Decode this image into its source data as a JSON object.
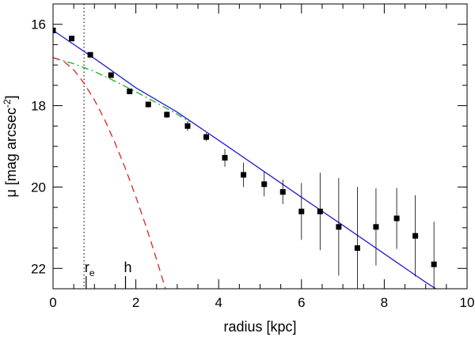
{
  "chart_data": {
    "type": "scatter",
    "xlabel": "radius [kpc]",
    "ylabel": "μ [mag arcsec",
    "ylabel_sup": "-2",
    "ylabel_close": "]",
    "xlim": [
      0,
      10
    ],
    "ylim": [
      22.5,
      15.5
    ],
    "y_inverted": true,
    "x_ticks": [
      0,
      2,
      4,
      6,
      8,
      10
    ],
    "y_ticks": [
      16,
      18,
      20,
      22
    ],
    "markers": [
      {
        "label": "r",
        "label_sub": "e",
        "x": 0.8
      },
      {
        "label": "h",
        "x": 1.75
      }
    ],
    "vline": {
      "x": 0.75,
      "style": "dotted",
      "color": "#555555"
    },
    "points": [
      {
        "x": 0.0,
        "y": 16.15,
        "err": 0.0
      },
      {
        "x": 0.45,
        "y": 16.35,
        "err": 0.0
      },
      {
        "x": 0.9,
        "y": 16.75,
        "err": 0.0
      },
      {
        "x": 1.4,
        "y": 17.25,
        "err": 0.0
      },
      {
        "x": 1.85,
        "y": 17.65,
        "err": 0.0
      },
      {
        "x": 2.3,
        "y": 17.97,
        "err": 0.0
      },
      {
        "x": 2.75,
        "y": 18.22,
        "err": 0.08
      },
      {
        "x": 3.25,
        "y": 18.5,
        "err": 0.12
      },
      {
        "x": 3.7,
        "y": 18.77,
        "err": 0.1
      },
      {
        "x": 4.15,
        "y": 19.28,
        "err": 0.22
      },
      {
        "x": 4.6,
        "y": 19.7,
        "err": 0.3
      },
      {
        "x": 5.1,
        "y": 19.93,
        "err": 0.3
      },
      {
        "x": 5.55,
        "y": 20.12,
        "err": 0.3
      },
      {
        "x": 6.0,
        "y": 20.6,
        "err": 0.7
      },
      {
        "x": 6.45,
        "y": 20.6,
        "err": 0.95
      },
      {
        "x": 6.9,
        "y": 20.98,
        "err": 1.2
      },
      {
        "x": 7.35,
        "y": 21.5,
        "err": 1.5
      },
      {
        "x": 7.8,
        "y": 20.98,
        "err": 0.95
      },
      {
        "x": 8.3,
        "y": 20.77,
        "err": 0.75
      },
      {
        "x": 8.75,
        "y": 21.2,
        "err": 1.0
      },
      {
        "x": 9.2,
        "y": 21.9,
        "err": 1.05
      }
    ],
    "series": [
      {
        "type": "line",
        "color": "#1f1fd0",
        "style": "solid",
        "x": [
          0,
          1,
          2,
          3,
          4,
          5,
          6,
          7,
          8,
          9,
          9.4
        ],
        "y": [
          16.15,
          16.84,
          17.56,
          18.16,
          18.85,
          19.55,
          20.25,
          20.94,
          21.64,
          22.34,
          22.6
        ]
      },
      {
        "type": "line",
        "color": "#18b020",
        "style": "dashdot",
        "x": [
          0,
          0.5,
          1,
          1.5,
          2,
          2.5,
          3,
          3.3
        ],
        "y": [
          16.82,
          16.97,
          17.16,
          17.4,
          17.66,
          17.93,
          18.21,
          18.4
        ]
      },
      {
        "type": "line",
        "color": "#e02020",
        "style": "dashed",
        "x": [
          0,
          0.25,
          0.5,
          0.75,
          1.0,
          1.25,
          1.5,
          1.75,
          2.0,
          2.25,
          2.5,
          2.75,
          3.0
        ],
        "y": [
          16.82,
          16.9,
          17.12,
          17.45,
          17.86,
          18.35,
          18.92,
          19.55,
          20.24,
          20.98,
          21.78,
          22.62,
          23.5
        ]
      }
    ]
  }
}
